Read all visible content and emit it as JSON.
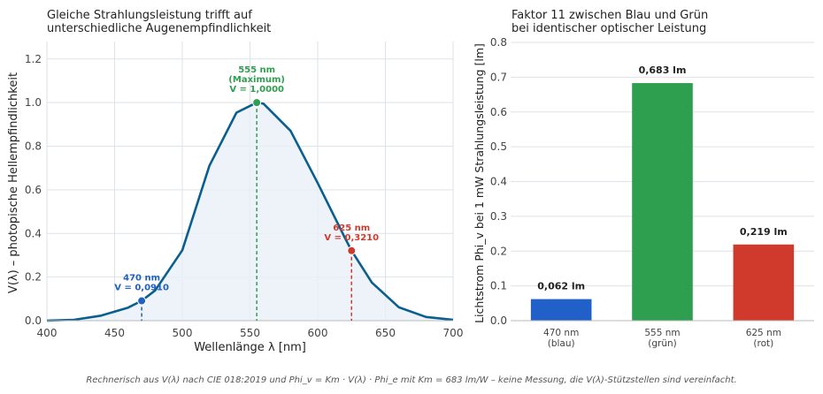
{
  "chart_data": [
    {
      "type": "line",
      "title": "Gleiche Strahlungsleistung trifft auf\nunterschiedliche Augenempfindlichkeit",
      "xlabel": "Wellenlänge λ [nm]",
      "ylabel": "V(λ) – photopische Hellempfindlichkeit",
      "xlim": [
        400,
        700
      ],
      "ylim": [
        0,
        1.28
      ],
      "xticks": [
        400,
        450,
        500,
        550,
        600,
        650,
        700
      ],
      "yticks": [
        0.0,
        0.2,
        0.4,
        0.6,
        0.8,
        1.0,
        1.2
      ],
      "grid": true,
      "series": [
        {
          "color": "#0b5f8f",
          "x": [
            380,
            400,
            420,
            440,
            460,
            470,
            480,
            500,
            520,
            540,
            555,
            560,
            580,
            600,
            620,
            625,
            640,
            660,
            680,
            700
          ],
          "y": [
            0.0,
            0.0004,
            0.004,
            0.023,
            0.06,
            0.091,
            0.139,
            0.323,
            0.71,
            0.954,
            1.0,
            0.995,
            0.87,
            0.631,
            0.381,
            0.321,
            0.175,
            0.061,
            0.017,
            0.004
          ]
        }
      ],
      "markers": [
        {
          "x": 470,
          "y": 0.091,
          "color": "#2060c0",
          "label_lines": [
            "470 nm",
            "V = 0,0910"
          ]
        },
        {
          "x": 555,
          "y": 1.0,
          "color": "#2e9e4f",
          "label_lines": [
            "555 nm",
            "(Maximum)",
            "V = 1,0000"
          ]
        },
        {
          "x": 625,
          "y": 0.321,
          "color": "#d03a2c",
          "label_lines": [
            "625 nm",
            "V = 0,3210"
          ]
        }
      ]
    },
    {
      "type": "bar",
      "title": "Faktor 11 zwischen Blau und Grün\nbei identischer optischer Leistung",
      "xlabel": "",
      "ylabel": "Lichtstrom Phi_v bei 1 mW Strahlungsleistung [lm]",
      "ylim": [
        0,
        0.8
      ],
      "yticks": [
        0.0,
        0.1,
        0.2,
        0.3,
        0.4,
        0.5,
        0.6,
        0.7,
        0.8
      ],
      "grid": true,
      "categories": [
        "470 nm\n(blau)",
        "555 nm\n(grün)",
        "625 nm\n(rot)"
      ],
      "values": [
        0.062,
        0.683,
        0.219
      ],
      "value_labels": [
        "0,062 lm",
        "0,683 lm",
        "0,219 lm"
      ],
      "colors": [
        "#2060c8",
        "#2e9e4f",
        "#d03a2c"
      ]
    }
  ],
  "footnote": "Rechnerisch aus V(λ) nach CIE 018:2019 und Phi_v = Km · V(λ) · Phi_e mit Km = 683 lm/W – keine Messung, die V(λ)-Stützstellen sind vereinfacht."
}
